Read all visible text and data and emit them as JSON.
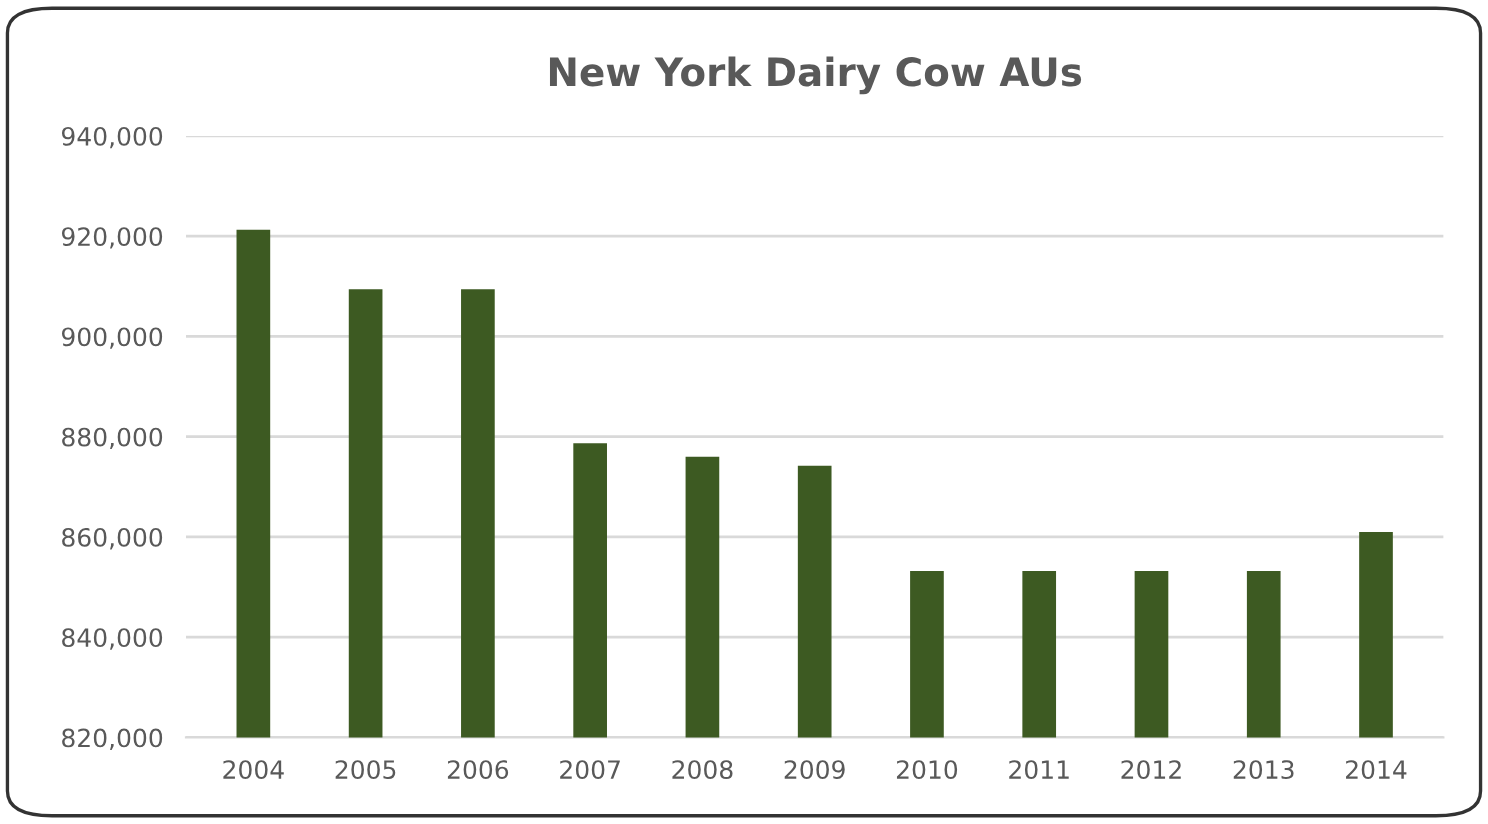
{
  "chart_data": {
    "type": "bar",
    "title": "New York Dairy Cow AUs",
    "categories": [
      "2004",
      "2005",
      "2006",
      "2007",
      "2008",
      "2009",
      "2010",
      "2011",
      "2012",
      "2013",
      "2014"
    ],
    "values": [
      921300,
      909400,
      909400,
      878700,
      876000,
      874200,
      853200,
      853200,
      853200,
      853200,
      861000
    ],
    "color": "#3d5a22",
    "ylim": [
      820000,
      940000
    ],
    "yticks": [
      {
        "value": 820000,
        "label": "820,000"
      },
      {
        "value": 840000,
        "label": "840,000"
      },
      {
        "value": 860000,
        "label": "860,000"
      },
      {
        "value": 880000,
        "label": "880,000"
      },
      {
        "value": 900000,
        "label": "900,000"
      },
      {
        "value": 920000,
        "label": "920,000"
      },
      {
        "value": 940000,
        "label": "940,000"
      }
    ],
    "grid": "y"
  }
}
